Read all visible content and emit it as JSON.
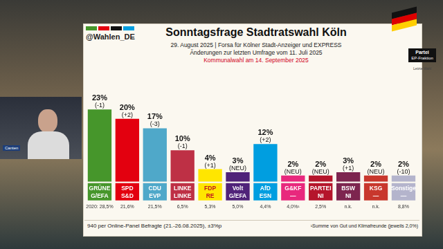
{
  "header": {
    "handle": "@Wahlen_DE",
    "title": "Sonntagsfrage Stadtratswahl Köln",
    "subtitle": "29. August 2025 | Forsa für Kölner Stadt-Anzeiger und EXPRESS",
    "changes_note": "Änderungen zur letzten Umfrage vom 11. Juli 2025",
    "election_note": "Kommunalwahl am 14. September 2025"
  },
  "legend_box": {
    "party": "Partei",
    "faction": "EP-Fraktion",
    "last_election": "Letzte Wahl"
  },
  "overlay_label": "Canten",
  "chart_data": {
    "type": "bar",
    "categories": [
      "GRÜNE",
      "SPD",
      "CDU",
      "LINKE",
      "FDP",
      "Volt",
      "AfD",
      "G&KF",
      "PARTEI",
      "BSW",
      "KSG",
      "Sonstige"
    ],
    "factions": [
      "G/EFA",
      "S&D",
      "EVP",
      "LINKE",
      "RE",
      "G/EFA",
      "ESN",
      "—",
      "NI",
      "NI",
      "—",
      "—"
    ],
    "values": [
      23,
      20,
      17,
      10,
      4,
      3,
      12,
      2,
      2,
      3,
      2,
      2
    ],
    "value_labels": [
      "23%",
      "20%",
      "17%",
      "10%",
      "4%",
      "3%",
      "12%",
      "2%",
      "2%",
      "3%",
      "2%",
      "2%"
    ],
    "changes": [
      "(-1)",
      "(+2)",
      "(-3)",
      "(-1)",
      "(+1)",
      "(NEU)",
      "(+2)",
      "(NEU)",
      "(NEU)",
      "(+1)",
      "(NEU)",
      "(-10)"
    ],
    "previous_labels": [
      "2020: 28,5%",
      "21,6%",
      "21,5%",
      "6,5%",
      "5,3%",
      "5,0%",
      "4,4%",
      "4,0%¹",
      "2,5%",
      "n.k.",
      "n.k.",
      "8,8%"
    ],
    "colors": [
      "#46962b",
      "#e3000f",
      "#4fa8c9",
      "#be3045",
      "#ffe600",
      "#502379",
      "#009ee0",
      "#e8287d",
      "#b5152b",
      "#7d254f",
      "#c8372d",
      "#b4b4cc"
    ],
    "ylim": [
      0,
      27
    ],
    "grid": false,
    "data_labels": true,
    "tick_labels": "x"
  },
  "footer": {
    "left": "940 per Online-Panel Befragte (21.-26.08.2025), ±3%p",
    "right": "¹Summe von Gut und Klimafreunde (jeweils 2,0%)"
  }
}
